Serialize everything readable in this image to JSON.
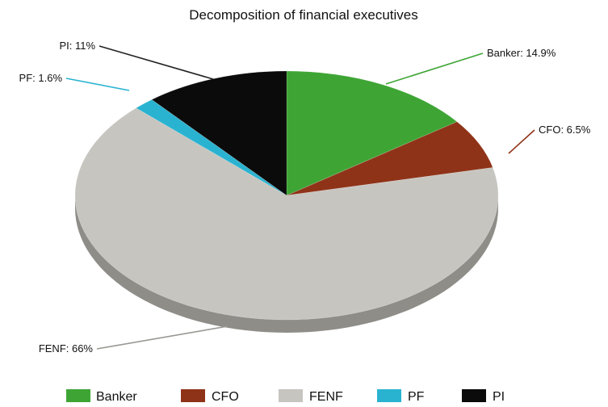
{
  "chart_data": {
    "type": "pie",
    "title": "Decomposition of financial executives",
    "slices": [
      {
        "name": "Banker",
        "value": 14.9,
        "label": "Banker: 14.9%",
        "color": "#3ea535",
        "side_color": "#22701d",
        "leader": "#3ea535"
      },
      {
        "name": "CFO",
        "value": 6.5,
        "label": "CFO: 6.5%",
        "color": "#8f3318",
        "side_color": "#5a1d0c",
        "leader": "#8f3318"
      },
      {
        "name": "FENF",
        "value": 66,
        "label": "FENF: 66%",
        "color": "#c7c5c0",
        "side_color": "#8f8d88",
        "leader": "#9a9893"
      },
      {
        "name": "PF",
        "value": 1.6,
        "label": "PF: 1.6%",
        "color": "#2ab3d0",
        "side_color": "#157c93",
        "leader": "#2ab3d0"
      },
      {
        "name": "PI",
        "value": 11,
        "label": "PI: 11%",
        "color": "#0b0b0b",
        "side_color": "#000000",
        "leader": "#222222"
      }
    ],
    "legend": {
      "position": "bottom",
      "items": [
        "Banker",
        "CFO",
        "FENF",
        "PF",
        "PI"
      ]
    }
  }
}
